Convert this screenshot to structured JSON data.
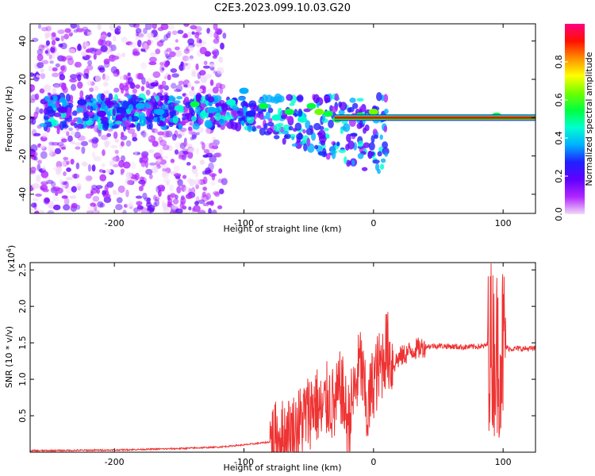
{
  "title": "C2E3.2023.099.10.03.G20",
  "chart_data": [
    {
      "type": "heatmap",
      "xlabel": "Height of straight line (km)",
      "ylabel": "Frequency (Hz)",
      "xlim": [
        -265,
        125
      ],
      "ylim": [
        -50,
        49
      ],
      "xticks": [
        -200,
        -100,
        0,
        100
      ],
      "xtick_labels": [
        "-200",
        "-100",
        "0",
        "100"
      ],
      "yticks": [
        -40,
        -20,
        0,
        20,
        40
      ],
      "ytick_labels": [
        "-40",
        "-20",
        "0",
        "20",
        "40"
      ],
      "colorbar": {
        "label": "Normalized spectral amplitude",
        "range": [
          0,
          1
        ],
        "ticks": [
          0.0,
          0.2,
          0.4,
          0.6,
          0.8
        ],
        "tick_labels": [
          "0.0",
          "0.2",
          "0.4",
          "0.6",
          "0.8"
        ],
        "colors": [
          "#f2d9f7",
          "#b026ff",
          "#6000ff",
          "#2020ff",
          "#00b0ff",
          "#00ffd0",
          "#00ff40",
          "#70ff00",
          "#ffff00",
          "#ff9000",
          "#ff1000",
          "#ff0080"
        ]
      },
      "blobs": [
        {
          "x": -240,
          "y": 4,
          "v": 0.15
        },
        {
          "x": -225,
          "y": 8,
          "v": 0.3
        },
        {
          "x": -210,
          "y": 2,
          "v": 0.2
        },
        {
          "x": -195,
          "y": 4,
          "v": 0.25
        },
        {
          "x": -180,
          "y": 6,
          "v": 0.35
        },
        {
          "x": -165,
          "y": 3,
          "v": 0.4
        },
        {
          "x": -150,
          "y": 5,
          "v": 0.45
        },
        {
          "x": -138,
          "y": 7,
          "v": 0.55
        },
        {
          "x": -125,
          "y": 4,
          "v": 0.4
        },
        {
          "x": -110,
          "y": 8,
          "v": 0.45
        },
        {
          "x": -100,
          "y": 14,
          "v": 0.35
        },
        {
          "x": -95,
          "y": 2,
          "v": 0.3
        },
        {
          "x": -85,
          "y": 6,
          "v": 0.5
        },
        {
          "x": -75,
          "y": 0,
          "v": 0.45
        },
        {
          "x": -65,
          "y": 3,
          "v": 0.5
        },
        {
          "x": -55,
          "y": -1,
          "v": 0.45
        },
        {
          "x": -48,
          "y": 6,
          "v": 0.55
        },
        {
          "x": -42,
          "y": 3,
          "v": 0.6
        },
        {
          "x": -35,
          "y": 2,
          "v": 0.55
        },
        {
          "x": -28,
          "y": -1,
          "v": 0.5
        },
        {
          "x": -20,
          "y": 0,
          "v": 0.6
        },
        {
          "x": -10,
          "y": 1,
          "v": 0.55
        },
        {
          "x": 0,
          "y": 3,
          "v": 0.6
        },
        {
          "x": 95,
          "y": 1,
          "v": 0.55
        }
      ],
      "line": {
        "x_start": -30,
        "x_end": 125,
        "y": 0,
        "v": 0.95
      }
    },
    {
      "type": "line",
      "xlabel": "Height of straight line (km)",
      "ylabel": "SNR (10 * v/v)",
      "y_multiplier": "(x10",
      "y_multiplier_exp": "4",
      "y_multiplier_close": ")",
      "xlim": [
        -265,
        125
      ],
      "ylim": [
        0,
        2.6
      ],
      "xticks": [
        -200,
        -100,
        0,
        100
      ],
      "xtick_labels": [
        "-200",
        "-100",
        "0",
        "100"
      ],
      "yticks": [
        0.5,
        1.0,
        1.5,
        2.0,
        2.5
      ],
      "ytick_labels": [
        "0.5",
        "1.0",
        "1.5",
        "2.0",
        "2.5"
      ],
      "color": "#ee3333",
      "series": [
        {
          "x": [
            -265,
            -200,
            -150,
            -120,
            -100,
            -80,
            -70,
            -60,
            -55,
            -50,
            -45,
            -40,
            -35,
            -30,
            -25,
            -20,
            -15,
            -10,
            -5,
            0,
            5,
            10,
            15,
            20,
            30,
            40,
            50,
            60,
            70,
            80,
            85,
            90,
            95,
            100,
            105,
            110,
            115,
            125
          ],
          "y": [
            0.02,
            0.03,
            0.05,
            0.07,
            0.1,
            0.14,
            0.2,
            0.3,
            0.45,
            0.55,
            0.7,
            0.5,
            0.75,
            0.6,
            0.9,
            0.4,
            0.8,
            1.25,
            0.5,
            1.0,
            1.15,
            1.45,
            1.2,
            1.3,
            1.4,
            1.45,
            1.46,
            1.45,
            1.44,
            1.45,
            1.45,
            1.5,
            1.35,
            1.45,
            1.42,
            1.42,
            1.42,
            1.42
          ]
        }
      ],
      "noise": [
        {
          "x0": -80,
          "x1": -20,
          "amp": 0.55
        },
        {
          "x0": -20,
          "x1": 15,
          "amp": 0.55
        },
        {
          "x0": 15,
          "x1": 40,
          "amp": 0.15
        },
        {
          "x0": 40,
          "x1": 88,
          "amp": 0.04
        },
        {
          "x0": 88,
          "x1": 102,
          "amp": 1.2
        },
        {
          "x0": 102,
          "x1": 125,
          "amp": 0.04
        }
      ]
    }
  ]
}
